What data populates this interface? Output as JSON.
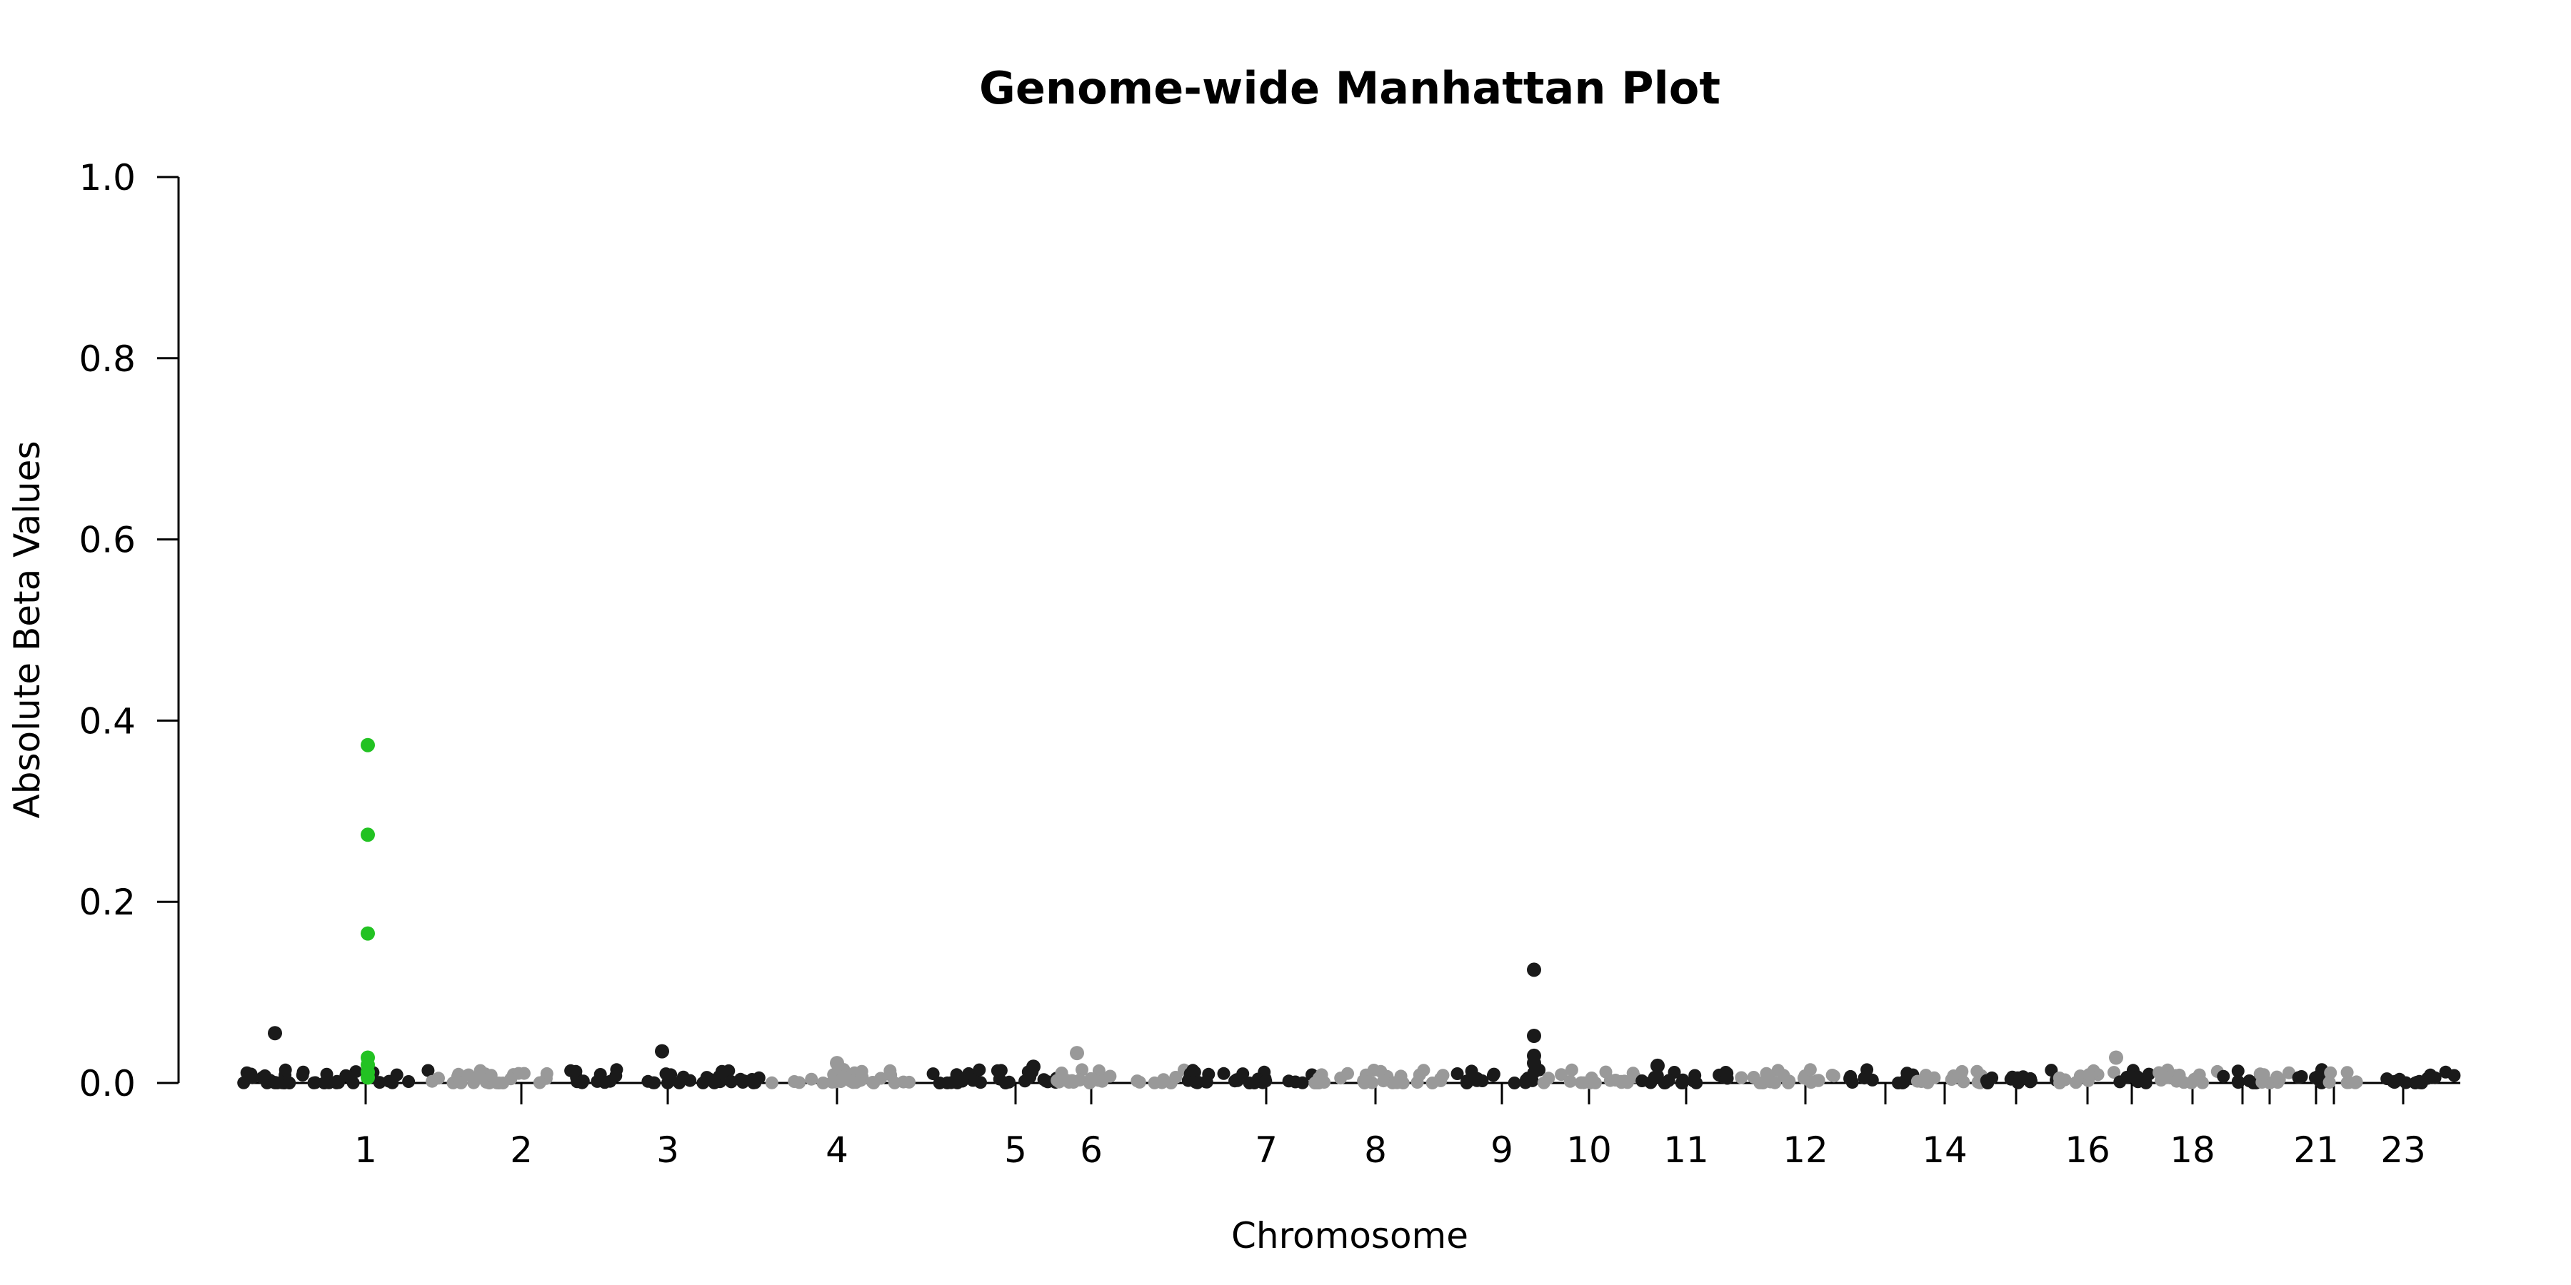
{
  "chart_data": {
    "type": "scatter",
    "title": "Genome-wide Manhattan Plot",
    "xlabel": "Chromosome",
    "ylabel": "Absolute Beta Values",
    "ylim": [
      0,
      1
    ],
    "yticks": [
      "0.0",
      "0.2",
      "0.4",
      "0.6",
      "0.8",
      "1.0"
    ],
    "ytick_values": [
      0,
      0.2,
      0.4,
      0.6,
      0.8,
      1.0
    ],
    "grid": false,
    "legend": "none",
    "colors": {
      "odd_chromosome": "#1a1a1a",
      "even_chromosome": "#999999",
      "highlight": "#22c222"
    },
    "chromosome_labels": [
      "1",
      "2",
      "3",
      "4",
      "5",
      "6",
      "7",
      "8",
      "9",
      "10",
      "11",
      "12",
      "14",
      "16",
      "18",
      "21",
      "23"
    ],
    "notable_points": [
      {
        "chromosome": "1",
        "value": 0.373,
        "highlight": true
      },
      {
        "chromosome": "1",
        "value": 0.274,
        "highlight": true
      },
      {
        "chromosome": "1",
        "value": 0.165,
        "highlight": true
      },
      {
        "chromosome": "1",
        "value": 0.028,
        "highlight": true
      },
      {
        "chromosome": "1",
        "value": 0.02,
        "highlight": true
      },
      {
        "chromosome": "1",
        "value": 0.012,
        "highlight": true
      },
      {
        "chromosome": "1",
        "value": 0.006,
        "highlight": true
      },
      {
        "chromosome": "1",
        "value": 0.055,
        "highlight": false
      },
      {
        "chromosome": "3",
        "value": 0.035,
        "highlight": false
      },
      {
        "chromosome": "4",
        "value": 0.022,
        "highlight": false
      },
      {
        "chromosome": "5",
        "value": 0.018,
        "highlight": false
      },
      {
        "chromosome": "6",
        "value": 0.033,
        "highlight": false
      },
      {
        "chromosome": "9",
        "value": 0.125,
        "highlight": false
      },
      {
        "chromosome": "9",
        "value": 0.052,
        "highlight": false
      },
      {
        "chromosome": "9",
        "value": 0.03,
        "highlight": false
      },
      {
        "chromosome": "9",
        "value": 0.022,
        "highlight": false
      },
      {
        "chromosome": "11",
        "value": 0.019,
        "highlight": false
      },
      {
        "chromosome": "16",
        "value": 0.028,
        "highlight": false
      }
    ],
    "baseline_band": [
      0,
      0.015
    ]
  }
}
